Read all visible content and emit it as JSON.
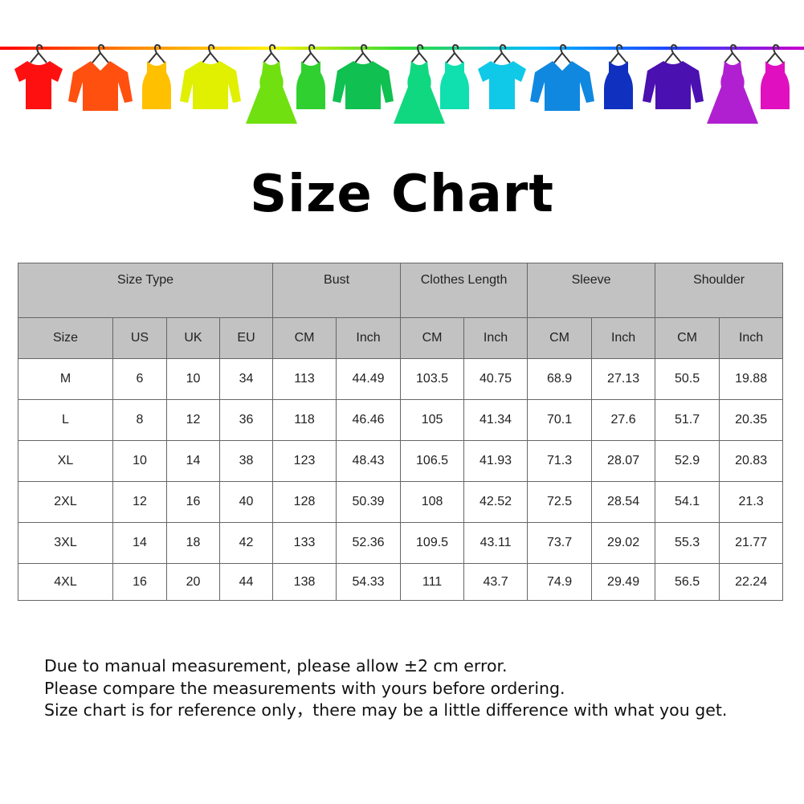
{
  "title": "Size Chart",
  "banner": {
    "line_colors": [
      "#ff0000",
      "#ff8800",
      "#ffee00",
      "#33dd33",
      "#00bbff",
      "#2244ff",
      "#cc00cc"
    ],
    "garments": [
      {
        "icon": "tshirt-icon",
        "color": "#ff1010"
      },
      {
        "icon": "shirt-icon",
        "color": "#ff5010"
      },
      {
        "icon": "tank-top-icon",
        "color": "#ffc000"
      },
      {
        "icon": "sweater-icon",
        "color": "#e0f000"
      },
      {
        "icon": "dress-icon",
        "color": "#70e010"
      },
      {
        "icon": "tank-top-icon",
        "color": "#30d030"
      },
      {
        "icon": "sweater-icon",
        "color": "#10c050"
      },
      {
        "icon": "dress-icon",
        "color": "#10d880"
      },
      {
        "icon": "tank-top-icon",
        "color": "#10e0b0"
      },
      {
        "icon": "tshirt-icon",
        "color": "#10c8e8"
      },
      {
        "icon": "shirt-icon",
        "color": "#1088e0"
      },
      {
        "icon": "tank-top-icon",
        "color": "#1030c0"
      },
      {
        "icon": "sweater-icon",
        "color": "#4a10b0"
      },
      {
        "icon": "dress-icon",
        "color": "#b020d0"
      },
      {
        "icon": "tank-top-icon",
        "color": "#e010c0"
      }
    ]
  },
  "table": {
    "groups": [
      {
        "label": "Size Type",
        "span": 4
      },
      {
        "label": "Bust",
        "span": 2
      },
      {
        "label": "Clothes Length",
        "span": 2
      },
      {
        "label": "Sleeve",
        "span": 2
      },
      {
        "label": "Shoulder",
        "span": 2
      }
    ],
    "subheaders": [
      "Size",
      "US",
      "UK",
      "EU",
      "CM",
      "Inch",
      "CM",
      "Inch",
      "CM",
      "Inch",
      "CM",
      "Inch"
    ],
    "rows": [
      [
        "M",
        "6",
        "10",
        "34",
        "113",
        "44.49",
        "103.5",
        "40.75",
        "68.9",
        "27.13",
        "50.5",
        "19.88"
      ],
      [
        "L",
        "8",
        "12",
        "36",
        "118",
        "46.46",
        "105",
        "41.34",
        "70.1",
        "27.6",
        "51.7",
        "20.35"
      ],
      [
        "XL",
        "10",
        "14",
        "38",
        "123",
        "48.43",
        "106.5",
        "41.93",
        "71.3",
        "28.07",
        "52.9",
        "20.83"
      ],
      [
        "2XL",
        "12",
        "16",
        "40",
        "128",
        "50.39",
        "108",
        "42.52",
        "72.5",
        "28.54",
        "54.1",
        "21.3"
      ],
      [
        "3XL",
        "14",
        "18",
        "42",
        "133",
        "52.36",
        "109.5",
        "43.11",
        "73.7",
        "29.02",
        "55.3",
        "21.77"
      ],
      [
        "4XL",
        "16",
        "20",
        "44",
        "138",
        "54.33",
        "111",
        "43.7",
        "74.9",
        "29.49",
        "56.5",
        "22.24"
      ]
    ]
  },
  "notes": [
    "Due to manual measurement, please allow ±2 cm error.",
    "Please compare the measurements with yours before ordering.",
    "Size chart is for reference only，there may be a little difference with what you get."
  ]
}
